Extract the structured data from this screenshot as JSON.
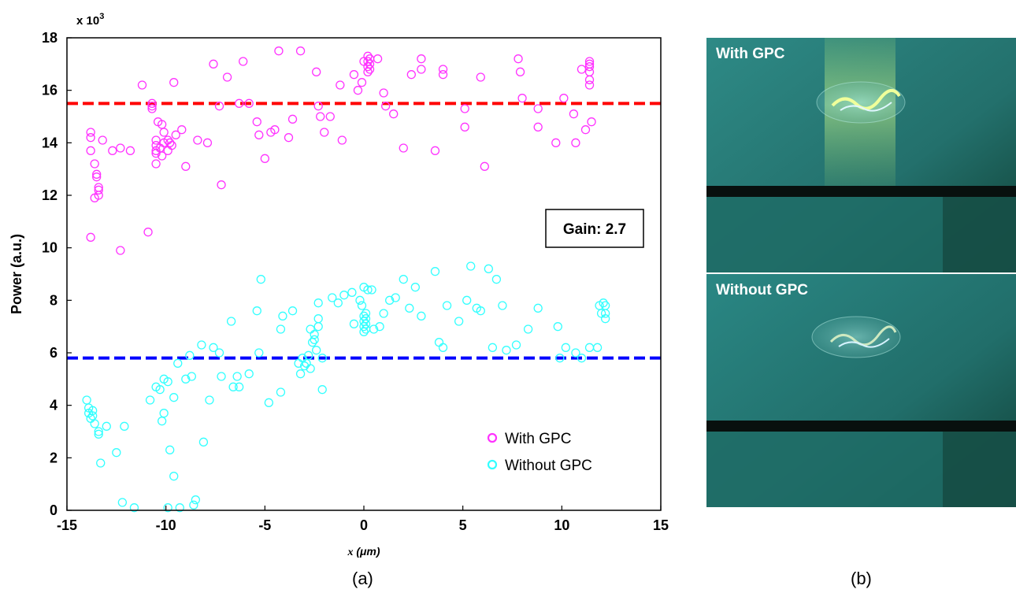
{
  "chart_data": {
    "type": "scatter",
    "xlabel_var": "x",
    "xlabel_unit": "(μm)",
    "ylabel": "Power (a.u.)",
    "y_multiplier": "x 10",
    "y_multiplier_exp": "3",
    "xlim": [
      -15,
      15
    ],
    "ylim": [
      0,
      18
    ],
    "xticks": [
      -15,
      -10,
      -5,
      0,
      5,
      10,
      15
    ],
    "yticks": [
      0,
      2,
      4,
      6,
      8,
      10,
      12,
      14,
      16,
      18
    ],
    "grid": false,
    "legend_position": "bottom-right",
    "annotation": "Gain: 2.7",
    "hlines": [
      {
        "y": 15.5,
        "color": "#ff0000"
      },
      {
        "y": 5.8,
        "color": "#0000ff"
      }
    ],
    "series": [
      {
        "name": "With GPC",
        "color": "#ff33ff",
        "points": [
          [
            -13.8,
            10.4
          ],
          [
            -13.8,
            13.7
          ],
          [
            -13.8,
            14.2
          ],
          [
            -13.8,
            14.4
          ],
          [
            -13.6,
            11.9
          ],
          [
            -13.6,
            13.2
          ],
          [
            -13.5,
            12.7
          ],
          [
            -13.5,
            12.8
          ],
          [
            -13.4,
            12.0
          ],
          [
            -13.4,
            12.2
          ],
          [
            -13.4,
            12.3
          ],
          [
            -13.2,
            14.1
          ],
          [
            -12.7,
            13.7
          ],
          [
            -12.3,
            13.8
          ],
          [
            -12.3,
            9.9
          ],
          [
            -11.8,
            13.7
          ],
          [
            -11.2,
            16.2
          ],
          [
            -10.9,
            10.6
          ],
          [
            -10.7,
            15.4
          ],
          [
            -10.7,
            15.5
          ],
          [
            -10.7,
            15.3
          ],
          [
            -10.5,
            14.1
          ],
          [
            -10.5,
            13.9
          ],
          [
            -10.5,
            13.7
          ],
          [
            -10.5,
            13.6
          ],
          [
            -10.5,
            13.2
          ],
          [
            -10.4,
            14.8
          ],
          [
            -10.3,
            13.8
          ],
          [
            -10.2,
            13.5
          ],
          [
            -10.2,
            14.7
          ],
          [
            -10.1,
            14.0
          ],
          [
            -10.1,
            14.4
          ],
          [
            -9.9,
            13.7
          ],
          [
            -9.9,
            14.1
          ],
          [
            -9.8,
            14.0
          ],
          [
            -9.7,
            13.9
          ],
          [
            -9.6,
            16.3
          ],
          [
            -9.5,
            14.3
          ],
          [
            -9.2,
            14.5
          ],
          [
            -9.0,
            13.1
          ],
          [
            -8.4,
            14.1
          ],
          [
            -7.9,
            14.0
          ],
          [
            -7.6,
            17.0
          ],
          [
            -7.3,
            15.4
          ],
          [
            -7.2,
            12.4
          ],
          [
            -6.9,
            16.5
          ],
          [
            -6.3,
            15.5
          ],
          [
            -6.1,
            17.1
          ],
          [
            -5.8,
            15.5
          ],
          [
            -5.4,
            14.8
          ],
          [
            -5.3,
            14.3
          ],
          [
            -5.0,
            13.4
          ],
          [
            -4.7,
            14.4
          ],
          [
            -4.5,
            14.5
          ],
          [
            -4.3,
            17.5
          ],
          [
            -3.8,
            14.2
          ],
          [
            -3.6,
            14.9
          ],
          [
            -3.2,
            17.5
          ],
          [
            -2.4,
            16.7
          ],
          [
            -2.3,
            15.4
          ],
          [
            -2.2,
            15.0
          ],
          [
            -2.0,
            14.4
          ],
          [
            -1.7,
            15.0
          ],
          [
            -1.2,
            16.2
          ],
          [
            -1.1,
            14.1
          ],
          [
            -0.5,
            16.6
          ],
          [
            -0.3,
            16.0
          ],
          [
            -0.1,
            16.3
          ],
          [
            0.0,
            17.1
          ],
          [
            0.2,
            17.3
          ],
          [
            0.2,
            17.1
          ],
          [
            0.2,
            16.9
          ],
          [
            0.2,
            16.7
          ],
          [
            0.3,
            17.0
          ],
          [
            0.3,
            17.2
          ],
          [
            0.3,
            16.8
          ],
          [
            0.7,
            17.2
          ],
          [
            1.0,
            15.9
          ],
          [
            1.1,
            15.4
          ],
          [
            1.5,
            15.1
          ],
          [
            2.0,
            13.8
          ],
          [
            2.4,
            16.6
          ],
          [
            2.9,
            16.8
          ],
          [
            2.9,
            17.2
          ],
          [
            3.6,
            13.7
          ],
          [
            4.0,
            16.6
          ],
          [
            4.0,
            16.8
          ],
          [
            5.1,
            15.3
          ],
          [
            5.1,
            14.6
          ],
          [
            5.9,
            16.5
          ],
          [
            6.1,
            13.1
          ],
          [
            7.8,
            17.2
          ],
          [
            7.9,
            16.7
          ],
          [
            8.0,
            15.7
          ],
          [
            8.8,
            14.6
          ],
          [
            8.8,
            15.3
          ],
          [
            9.7,
            14.0
          ],
          [
            10.1,
            15.7
          ],
          [
            10.6,
            15.1
          ],
          [
            10.7,
            14.0
          ],
          [
            11.0,
            16.8
          ],
          [
            11.2,
            14.5
          ],
          [
            11.4,
            16.2
          ],
          [
            11.4,
            16.4
          ],
          [
            11.4,
            16.7
          ],
          [
            11.4,
            16.9
          ],
          [
            11.4,
            17.0
          ],
          [
            11.4,
            17.1
          ],
          [
            11.5,
            14.8
          ]
        ]
      },
      {
        "name": "Without GPC",
        "color": "#33ffff",
        "points": [
          [
            -14.0,
            4.2
          ],
          [
            -13.9,
            3.7
          ],
          [
            -13.9,
            3.9
          ],
          [
            -13.8,
            3.5
          ],
          [
            -13.7,
            3.8
          ],
          [
            -13.7,
            3.6
          ],
          [
            -13.6,
            3.3
          ],
          [
            -13.4,
            3.0
          ],
          [
            -13.4,
            2.9
          ],
          [
            -13.3,
            1.8
          ],
          [
            -13.0,
            3.2
          ],
          [
            -12.5,
            2.2
          ],
          [
            -12.2,
            0.3
          ],
          [
            -12.1,
            3.2
          ],
          [
            -11.6,
            0.1
          ],
          [
            -10.8,
            4.2
          ],
          [
            -10.5,
            4.7
          ],
          [
            -10.3,
            4.6
          ],
          [
            -10.2,
            3.4
          ],
          [
            -10.1,
            3.7
          ],
          [
            -10.1,
            5.0
          ],
          [
            -9.9,
            4.9
          ],
          [
            -9.9,
            0.1
          ],
          [
            -9.8,
            2.3
          ],
          [
            -9.6,
            1.3
          ],
          [
            -9.6,
            4.3
          ],
          [
            -9.4,
            5.6
          ],
          [
            -9.3,
            0.1
          ],
          [
            -9.0,
            5.0
          ],
          [
            -8.8,
            5.9
          ],
          [
            -8.7,
            5.1
          ],
          [
            -8.6,
            0.2
          ],
          [
            -8.5,
            0.4
          ],
          [
            -8.2,
            6.3
          ],
          [
            -8.1,
            2.6
          ],
          [
            -7.8,
            4.2
          ],
          [
            -7.6,
            6.2
          ],
          [
            -7.3,
            6.0
          ],
          [
            -7.2,
            5.1
          ],
          [
            -6.7,
            7.2
          ],
          [
            -6.6,
            4.7
          ],
          [
            -6.4,
            5.1
          ],
          [
            -6.3,
            4.7
          ],
          [
            -5.8,
            5.2
          ],
          [
            -5.4,
            7.6
          ],
          [
            -5.3,
            6.0
          ],
          [
            -5.2,
            8.8
          ],
          [
            -4.8,
            4.1
          ],
          [
            -4.2,
            6.9
          ],
          [
            -4.2,
            4.5
          ],
          [
            -4.1,
            7.4
          ],
          [
            -3.6,
            7.6
          ],
          [
            -3.3,
            5.6
          ],
          [
            -3.2,
            5.2
          ],
          [
            -3.1,
            5.8
          ],
          [
            -3.0,
            5.5
          ],
          [
            -2.9,
            5.6
          ],
          [
            -2.8,
            5.9
          ],
          [
            -2.7,
            5.4
          ],
          [
            -2.7,
            6.9
          ],
          [
            -2.6,
            6.4
          ],
          [
            -2.5,
            6.7
          ],
          [
            -2.5,
            6.5
          ],
          [
            -2.4,
            6.1
          ],
          [
            -2.3,
            7.0
          ],
          [
            -2.3,
            7.3
          ],
          [
            -2.3,
            7.9
          ],
          [
            -2.1,
            5.8
          ],
          [
            -2.1,
            4.6
          ],
          [
            -1.6,
            8.1
          ],
          [
            -1.3,
            7.9
          ],
          [
            -1.0,
            8.2
          ],
          [
            -0.6,
            8.3
          ],
          [
            -0.5,
            7.1
          ],
          [
            -0.2,
            8.0
          ],
          [
            -0.1,
            7.8
          ],
          [
            0.0,
            7.2
          ],
          [
            0.0,
            7.0
          ],
          [
            0.0,
            6.8
          ],
          [
            0.0,
            7.4
          ],
          [
            0.0,
            8.5
          ],
          [
            0.1,
            7.1
          ],
          [
            0.1,
            7.3
          ],
          [
            0.1,
            6.9
          ],
          [
            0.1,
            7.5
          ],
          [
            0.2,
            8.4
          ],
          [
            0.4,
            8.4
          ],
          [
            0.5,
            6.9
          ],
          [
            0.8,
            7.0
          ],
          [
            1.0,
            7.5
          ],
          [
            1.3,
            8.0
          ],
          [
            1.6,
            8.1
          ],
          [
            2.0,
            8.8
          ],
          [
            2.3,
            7.7
          ],
          [
            2.6,
            8.5
          ],
          [
            2.9,
            7.4
          ],
          [
            3.6,
            9.1
          ],
          [
            3.8,
            6.4
          ],
          [
            4.0,
            6.2
          ],
          [
            4.2,
            7.8
          ],
          [
            4.8,
            7.2
          ],
          [
            5.2,
            8.0
          ],
          [
            5.4,
            9.3
          ],
          [
            5.7,
            7.7
          ],
          [
            5.9,
            7.6
          ],
          [
            6.3,
            9.2
          ],
          [
            6.5,
            6.2
          ],
          [
            6.7,
            8.8
          ],
          [
            7.0,
            7.8
          ],
          [
            7.2,
            6.1
          ],
          [
            7.7,
            6.3
          ],
          [
            8.3,
            6.9
          ],
          [
            8.8,
            7.7
          ],
          [
            9.8,
            7.0
          ],
          [
            9.9,
            5.8
          ],
          [
            10.2,
            6.2
          ],
          [
            10.7,
            6.0
          ],
          [
            11.0,
            5.8
          ],
          [
            11.4,
            6.2
          ],
          [
            11.8,
            6.2
          ],
          [
            11.9,
            7.8
          ],
          [
            12.0,
            7.5
          ],
          [
            12.1,
            7.9
          ],
          [
            12.2,
            7.3
          ],
          [
            12.2,
            7.8
          ],
          [
            12.2,
            7.5
          ]
        ]
      }
    ]
  },
  "panel_labels": {
    "a": "(a)",
    "b": "(b)"
  },
  "photos": [
    {
      "label": "With GPC"
    },
    {
      "label": "Without GPC"
    }
  ]
}
